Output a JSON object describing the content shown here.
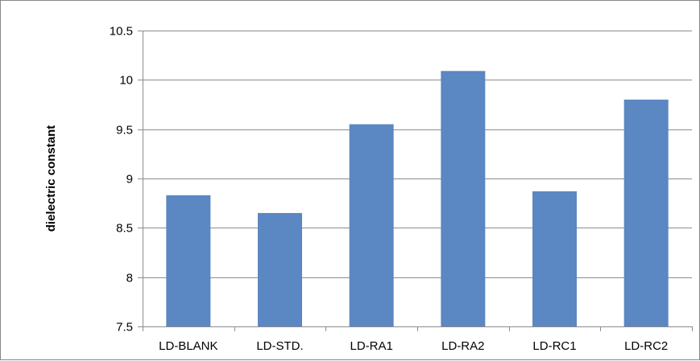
{
  "chart_data": {
    "type": "bar",
    "title": "",
    "xlabel": "",
    "ylabel": "dielectric constant",
    "categories": [
      "LD-BLANK",
      "LD-STD.",
      "LD-RA1",
      "LD-RA2",
      "LD-RC1",
      "LD-RC2"
    ],
    "values": [
      8.83,
      8.65,
      9.55,
      10.09,
      8.87,
      9.8
    ],
    "ylim": [
      7.5,
      10.5
    ],
    "yticks": [
      "7.5",
      "8",
      "8.5",
      "9",
      "9.5",
      "10",
      "10.5"
    ],
    "grid": true,
    "legend": "none",
    "bar_color": "#5b87c2",
    "gridline_color": "#8c8c8c"
  }
}
